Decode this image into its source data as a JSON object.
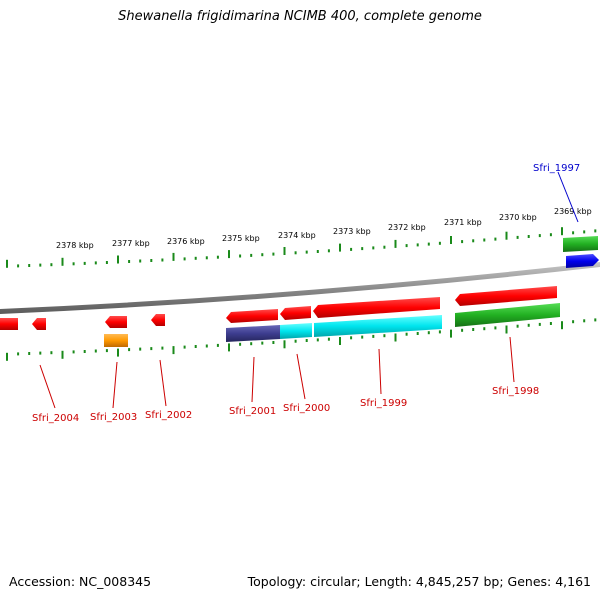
{
  "title": "Shewanella frigidimarina NCIMB 400, complete genome",
  "accession": "Accession: NC_008345",
  "summary": "Topology: circular; Length: 4,845,257 bp; Genes: 4,161",
  "colors": {
    "red": "#ff0000",
    "green": "#1aad1a",
    "cyan": "#00e5ee",
    "navy": "#3d3d8f",
    "orange": "#ff9900",
    "blue": "#0000ee",
    "tick": "#1a8a1a",
    "backbone": "#8c8c8c",
    "label_red": "#cc0000",
    "label_blue": "#0000cc"
  },
  "scale_labels": [
    "2378 kbp",
    "2377 kbp",
    "2376 kbp",
    "2375 kbp",
    "2374 kbp",
    "2373 kbp",
    "2372 kbp",
    "2371 kbp",
    "2370 kbp",
    "2369 kbp"
  ],
  "gene_labels": [
    "Sfri_2004",
    "Sfri_2003",
    "Sfri_2002",
    "Sfri_2001",
    "Sfri_2000",
    "Sfri_1999",
    "Sfri_1998",
    "Sfri_1997"
  ]
}
